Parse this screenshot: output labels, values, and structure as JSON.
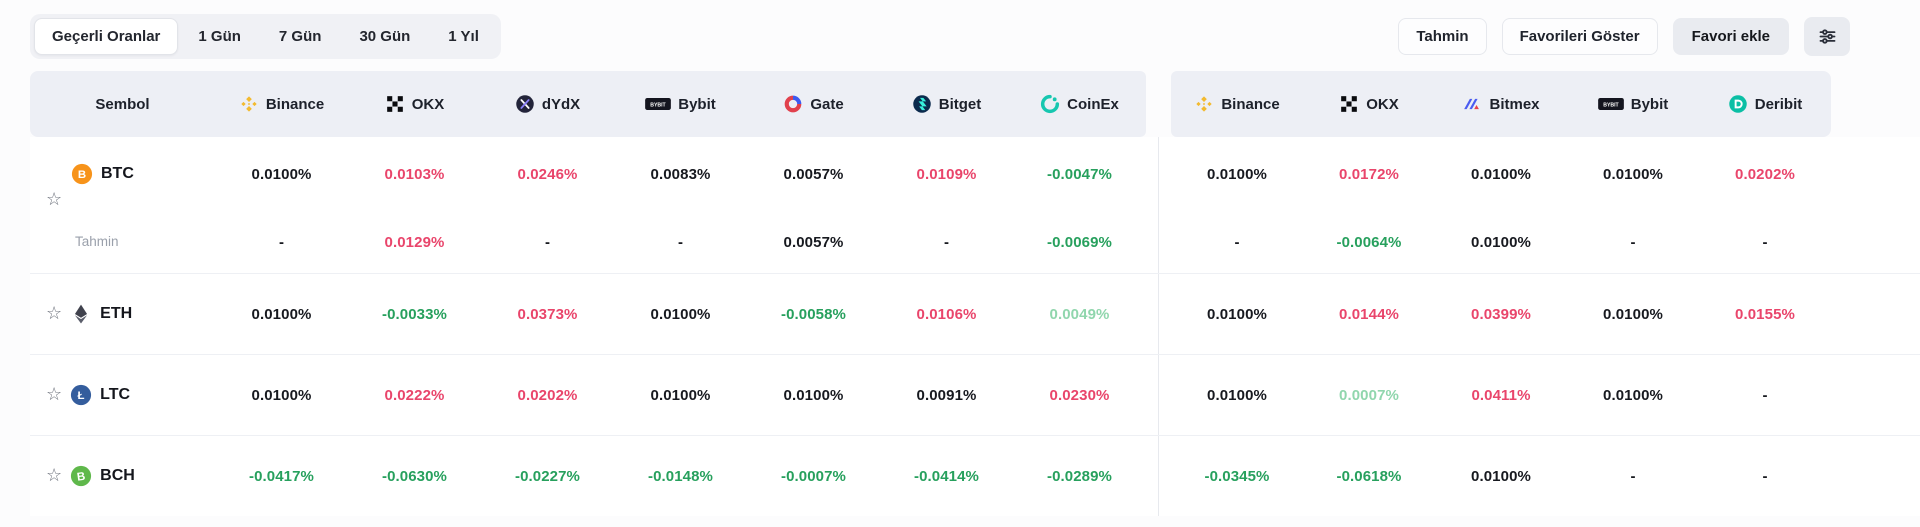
{
  "toolbar": {
    "tabs": [
      {
        "label": "Geçerli Oranlar",
        "active": true
      },
      {
        "label": "1 Gün",
        "active": false
      },
      {
        "label": "7 Gün",
        "active": false
      },
      {
        "label": "30 Gün",
        "active": false
      },
      {
        "label": "1 Yıl",
        "active": false
      }
    ],
    "actions": [
      {
        "label": "Tahmin",
        "style": "plain"
      },
      {
        "label": "Favorileri Göster",
        "style": "plain"
      },
      {
        "label": "Favori ekle",
        "style": "filled"
      }
    ],
    "filter_button": {
      "icon": "filter-sliders-icon"
    }
  },
  "colors": {
    "positive_red": "#e9456b",
    "negative_green": "#27a05d",
    "muted_green": "#90d6ad",
    "neutral": "#17191f",
    "header_bg": "#edeff5"
  },
  "table": {
    "symbol_header": "Sembol",
    "prediction_label": "Tahmin",
    "favorite_icon": "star-outline-icon",
    "columns": [
      {
        "name": "Binance",
        "icon": "binance",
        "group": 1
      },
      {
        "name": "OKX",
        "icon": "okx",
        "group": 1
      },
      {
        "name": "dYdX",
        "icon": "dydx",
        "group": 1
      },
      {
        "name": "Bybit",
        "icon": "bybit",
        "group": 1
      },
      {
        "name": "Gate",
        "icon": "gate",
        "group": 1
      },
      {
        "name": "Bitget",
        "icon": "bitget",
        "group": 1
      },
      {
        "name": "CoinEx",
        "icon": "coinex",
        "group": 1
      },
      {
        "name": "Binance",
        "icon": "binance",
        "group": 2
      },
      {
        "name": "OKX",
        "icon": "okx",
        "group": 2
      },
      {
        "name": "Bitmex",
        "icon": "bitmex",
        "group": 2
      },
      {
        "name": "Bybit",
        "icon": "bybit",
        "group": 2
      },
      {
        "name": "Deribit",
        "icon": "deribit",
        "group": 2
      }
    ],
    "rows": [
      {
        "symbol": "BTC",
        "coin_icon": "btc",
        "values": [
          {
            "text": "0.0100%",
            "tone": "neutral"
          },
          {
            "text": "0.0103%",
            "tone": "red"
          },
          {
            "text": "0.0246%",
            "tone": "red"
          },
          {
            "text": "0.0083%",
            "tone": "neutral"
          },
          {
            "text": "0.0057%",
            "tone": "neutral"
          },
          {
            "text": "0.0109%",
            "tone": "red"
          },
          {
            "text": "-0.0047%",
            "tone": "green"
          },
          {
            "text": "0.0100%",
            "tone": "neutral"
          },
          {
            "text": "0.0172%",
            "tone": "red"
          },
          {
            "text": "0.0100%",
            "tone": "neutral"
          },
          {
            "text": "0.0100%",
            "tone": "neutral"
          },
          {
            "text": "0.0202%",
            "tone": "red"
          }
        ],
        "prediction": [
          {
            "text": "-",
            "tone": "neutral"
          },
          {
            "text": "0.0129%",
            "tone": "red"
          },
          {
            "text": "-",
            "tone": "neutral"
          },
          {
            "text": "-",
            "tone": "neutral"
          },
          {
            "text": "0.0057%",
            "tone": "neutral"
          },
          {
            "text": "-",
            "tone": "neutral"
          },
          {
            "text": "-0.0069%",
            "tone": "green"
          },
          {
            "text": "-",
            "tone": "neutral"
          },
          {
            "text": "-0.0064%",
            "tone": "green"
          },
          {
            "text": "0.0100%",
            "tone": "neutral"
          },
          {
            "text": "-",
            "tone": "neutral"
          },
          {
            "text": "-",
            "tone": "neutral"
          }
        ]
      },
      {
        "symbol": "ETH",
        "coin_icon": "eth",
        "values": [
          {
            "text": "0.0100%",
            "tone": "neutral"
          },
          {
            "text": "-0.0033%",
            "tone": "green"
          },
          {
            "text": "0.0373%",
            "tone": "red"
          },
          {
            "text": "0.0100%",
            "tone": "neutral"
          },
          {
            "text": "-0.0058%",
            "tone": "green"
          },
          {
            "text": "0.0106%",
            "tone": "red"
          },
          {
            "text": "0.0049%",
            "tone": "green-muted"
          },
          {
            "text": "0.0100%",
            "tone": "neutral"
          },
          {
            "text": "0.0144%",
            "tone": "red"
          },
          {
            "text": "0.0399%",
            "tone": "red"
          },
          {
            "text": "0.0100%",
            "tone": "neutral"
          },
          {
            "text": "0.0155%",
            "tone": "red"
          }
        ]
      },
      {
        "symbol": "LTC",
        "coin_icon": "ltc",
        "values": [
          {
            "text": "0.0100%",
            "tone": "neutral"
          },
          {
            "text": "0.0222%",
            "tone": "red"
          },
          {
            "text": "0.0202%",
            "tone": "red"
          },
          {
            "text": "0.0100%",
            "tone": "neutral"
          },
          {
            "text": "0.0100%",
            "tone": "neutral"
          },
          {
            "text": "0.0091%",
            "tone": "neutral"
          },
          {
            "text": "0.0230%",
            "tone": "red"
          },
          {
            "text": "0.0100%",
            "tone": "neutral"
          },
          {
            "text": "0.0007%",
            "tone": "green-muted"
          },
          {
            "text": "0.0411%",
            "tone": "red"
          },
          {
            "text": "0.0100%",
            "tone": "neutral"
          },
          {
            "text": "-",
            "tone": "neutral"
          }
        ]
      },
      {
        "symbol": "BCH",
        "coin_icon": "bch",
        "values": [
          {
            "text": "-0.0417%",
            "tone": "green"
          },
          {
            "text": "-0.0630%",
            "tone": "green"
          },
          {
            "text": "-0.0227%",
            "tone": "green"
          },
          {
            "text": "-0.0148%",
            "tone": "green"
          },
          {
            "text": "-0.0007%",
            "tone": "green"
          },
          {
            "text": "-0.0414%",
            "tone": "green"
          },
          {
            "text": "-0.0289%",
            "tone": "green"
          },
          {
            "text": "-0.0345%",
            "tone": "green"
          },
          {
            "text": "-0.0618%",
            "tone": "green"
          },
          {
            "text": "0.0100%",
            "tone": "neutral"
          },
          {
            "text": "-",
            "tone": "neutral"
          },
          {
            "text": "-",
            "tone": "neutral"
          }
        ]
      }
    ]
  }
}
